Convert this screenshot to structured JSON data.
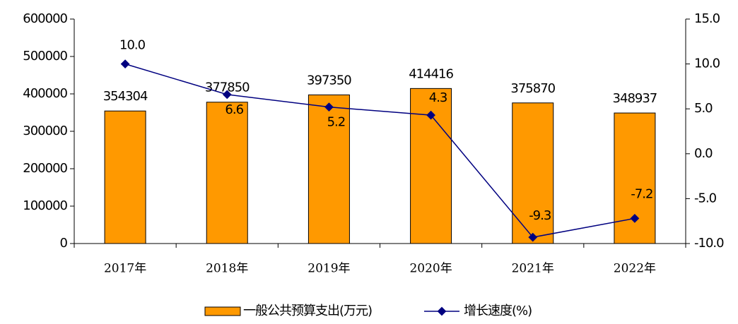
{
  "chart_data": {
    "type": "bar-line",
    "categories": [
      "2017年",
      "2018年",
      "2019年",
      "2020年",
      "2021年",
      "2022年"
    ],
    "series": [
      {
        "name": "一般公共预算支出(万元)",
        "type": "bar",
        "color": "#FF9900",
        "values": [
          354304,
          377850,
          397350,
          414416,
          375870,
          348937
        ]
      },
      {
        "name": "增长速度(%)",
        "type": "line",
        "axis": "y2",
        "color": "#000080",
        "values": [
          10.0,
          6.6,
          5.2,
          4.3,
          -9.3,
          -7.2
        ],
        "value_labels": [
          "10.0",
          "6.6",
          "5.2",
          "4.3",
          "-9.3",
          "-7.2"
        ]
      }
    ],
    "ylim": [
      0,
      600000
    ],
    "yticks": [
      0,
      100000,
      200000,
      300000,
      400000,
      500000,
      600000
    ],
    "y2lim": [
      -10,
      15
    ],
    "y2ticks": [
      {
        "value": -10,
        "label": "-10.0"
      },
      {
        "value": -5,
        "label": "-5.0"
      },
      {
        "value": 0,
        "label": "0.0"
      },
      {
        "value": 5,
        "label": "5.0"
      },
      {
        "value": 10,
        "label": "10.0"
      },
      {
        "value": 15,
        "label": "15.0"
      }
    ],
    "legend": "bottom"
  }
}
